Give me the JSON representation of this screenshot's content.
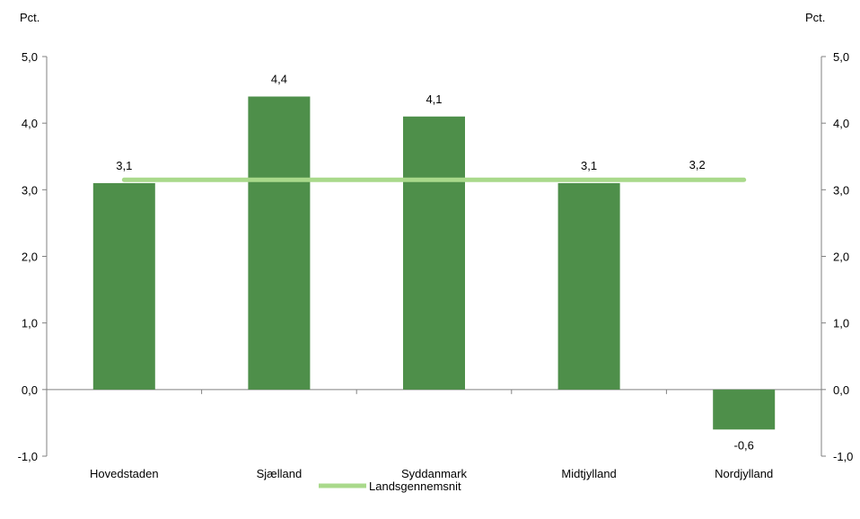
{
  "chart_data": {
    "type": "bar",
    "categories": [
      "Hovedstaden",
      "Sjælland",
      "Syddanmark",
      "Midtjylland",
      "Nordjylland"
    ],
    "series": [
      {
        "values": [
          3.1,
          4.4,
          4.1,
          3.1,
          -0.6
        ],
        "labels": [
          "3,1",
          "4,4",
          "4,1",
          "3,1",
          "-0,6"
        ],
        "color": "#4e8f4a"
      },
      {
        "name": "Landsgennemsnit",
        "type": "line",
        "values": [
          3.15,
          3.15,
          3.15,
          3.15,
          3.15
        ],
        "labels": [
          "",
          "",
          "",
          "",
          "3,2"
        ],
        "color": "#a9d98b"
      }
    ],
    "ylim": [
      -1.0,
      5.0
    ],
    "yticks": [
      -1.0,
      0.0,
      1.0,
      2.0,
      3.0,
      4.0,
      5.0
    ],
    "ytick_labels": [
      "-1,0",
      "0,0",
      "1,0",
      "2,0",
      "3,0",
      "4,0",
      "5,0"
    ],
    "left_unit": "Pct.",
    "right_unit": "Pct.",
    "legend_position": "bottom",
    "grid": false
  }
}
